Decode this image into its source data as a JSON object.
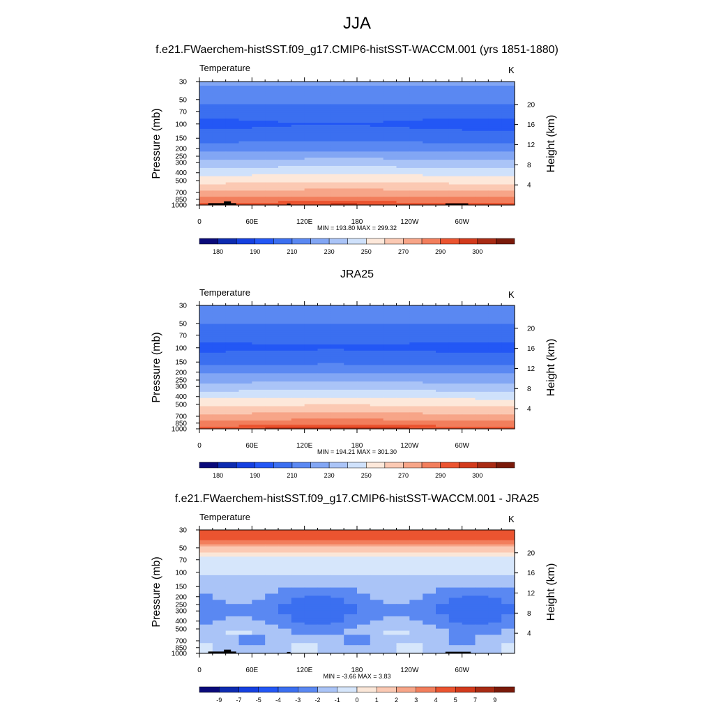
{
  "title": "JJA",
  "colors": {
    "abs_palette": [
      "#0a0a7a",
      "#0d2bb0",
      "#1540e0",
      "#2357f5",
      "#3b6ff0",
      "#5a88f2",
      "#82a6f4",
      "#aac4f7",
      "#cfe1fb",
      "#fde8da",
      "#fbc9b3",
      "#f7a588",
      "#f27e5c",
      "#eb5430",
      "#d23a1c",
      "#a82b14",
      "#7a1a0a"
    ],
    "diff_palette": [
      "#0a0a7a",
      "#0d2bb0",
      "#1540e0",
      "#2357f5",
      "#3b6ff0",
      "#5a88f2",
      "#aac4f7",
      "#d6e6fb",
      "#fbe7d8",
      "#fbc9b3",
      "#f7a588",
      "#f27e5c",
      "#eb5430",
      "#d23a1c",
      "#a82b14",
      "#7a1a0a"
    ],
    "terrain": "#000000"
  },
  "chart_data": [
    {
      "type": "heatmap",
      "name": "model",
      "title": "f.e21.FWaerchem-histSST.f09_g17.CMIP6-histSST-WACCM.001 (yrs 1851-1880)",
      "variable": "Temperature",
      "units": "K",
      "ylabel": "Pressure (mb)",
      "ylabel_right": "Height (km)",
      "x_ticks": [
        "0",
        "60E",
        "120E",
        "180",
        "120W",
        "60W"
      ],
      "xlim": [
        0,
        360
      ],
      "pressure_ticks": [
        30,
        50,
        70,
        100,
        150,
        200,
        250,
        300,
        400,
        500,
        700,
        850,
        1000
      ],
      "height_ticks": [
        4,
        8,
        12,
        16,
        20
      ],
      "min_max_text": "MIN = 193.80  MAX = 299.32",
      "levels": [
        180,
        185,
        190,
        200,
        210,
        220,
        230,
        240,
        250,
        260,
        270,
        280,
        290,
        295,
        300,
        305
      ],
      "levels_labels": [
        "180",
        "190",
        "210",
        "230",
        "250",
        "270",
        "290",
        "300"
      ],
      "profile_p": [
        30,
        50,
        70,
        100,
        150,
        200,
        250,
        300,
        400,
        500,
        700,
        850,
        1000
      ],
      "profile_T": [
        222,
        214,
        205,
        198,
        206,
        217,
        226,
        234,
        247,
        257,
        273,
        284,
        296
      ],
      "tropopause_shift_K": 3,
      "terrain_blocks": [
        {
          "lon0": 10,
          "lon1": 42,
          "p_top": 950
        },
        {
          "lon0": 28,
          "lon1": 36,
          "p_top": 900
        },
        {
          "lon0": 100,
          "lon1": 104,
          "p_top": 960
        },
        {
          "lon0": 281,
          "lon1": 307,
          "p_top": 955
        }
      ]
    },
    {
      "type": "heatmap",
      "name": "obs",
      "title": "JRA25",
      "variable": "Temperature",
      "units": "K",
      "ylabel": "Pressure (mb)",
      "ylabel_right": "Height (km)",
      "x_ticks": [
        "0",
        "60E",
        "120E",
        "180",
        "120W",
        "60W"
      ],
      "xlim": [
        0,
        360
      ],
      "pressure_ticks": [
        30,
        50,
        70,
        100,
        150,
        200,
        250,
        300,
        400,
        500,
        700,
        850,
        1000
      ],
      "height_ticks": [
        4,
        8,
        12,
        16,
        20
      ],
      "min_max_text": "MIN = 194.21  MAX = 301.30",
      "levels": [
        180,
        185,
        190,
        200,
        210,
        220,
        230,
        240,
        250,
        260,
        270,
        280,
        290,
        295,
        300,
        305
      ],
      "levels_labels": [
        "180",
        "190",
        "210",
        "230",
        "250",
        "270",
        "290",
        "300"
      ],
      "profile_p": [
        30,
        50,
        70,
        100,
        150,
        200,
        250,
        300,
        400,
        500,
        700,
        850,
        1000
      ],
      "profile_T": [
        216,
        210,
        204,
        198,
        207,
        218,
        227,
        235,
        248,
        258,
        274,
        285,
        297
      ],
      "tropopause_shift_K": 3,
      "terrain_blocks": []
    },
    {
      "type": "heatmap",
      "name": "diff",
      "title": "f.e21.FWaerchem-histSST.f09_g17.CMIP6-histSST-WACCM.001 - JRA25",
      "variable": "Temperature",
      "units": "K",
      "ylabel": "Pressure (mb)",
      "ylabel_right": "Height (km)",
      "x_ticks": [
        "0",
        "60E",
        "120E",
        "180",
        "120W",
        "60W"
      ],
      "xlim": [
        0,
        360
      ],
      "pressure_ticks": [
        30,
        50,
        70,
        100,
        150,
        200,
        250,
        300,
        400,
        500,
        700,
        850,
        1000
      ],
      "height_ticks": [
        4,
        8,
        12,
        16,
        20
      ],
      "min_max_text": "MIN =  -3.66  MAX =   3.83",
      "levels": [
        -9,
        -7,
        -5,
        -4,
        -3,
        -2,
        -1,
        0,
        1,
        2,
        3,
        4,
        5,
        7,
        9
      ],
      "levels_labels": [
        "-9",
        "-7",
        "-5",
        "-4",
        "-3",
        "-2",
        "-1",
        "0",
        "1",
        "2",
        "3",
        "4",
        "5",
        "7",
        "9"
      ],
      "profile_p": [
        30,
        40,
        50,
        60,
        70,
        100,
        150,
        200,
        250,
        300,
        400,
        500,
        700,
        850,
        1000
      ],
      "profile_T": [
        4.6,
        4.2,
        1.8,
        0.5,
        -0.8,
        -0.7,
        -1.9,
        -2.3,
        -2.8,
        -3.0,
        -2.5,
        -1.8,
        -1.6,
        -1.4,
        -1.2
      ],
      "tropopause_shift_K": 0,
      "terrain_blocks": [
        {
          "lon0": 10,
          "lon1": 42,
          "p_top": 950
        },
        {
          "lon0": 28,
          "lon1": 36,
          "p_top": 900
        },
        {
          "lon0": 100,
          "lon1": 104,
          "p_top": 960
        },
        {
          "lon0": 281,
          "lon1": 310,
          "p_top": 955
        }
      ]
    }
  ]
}
